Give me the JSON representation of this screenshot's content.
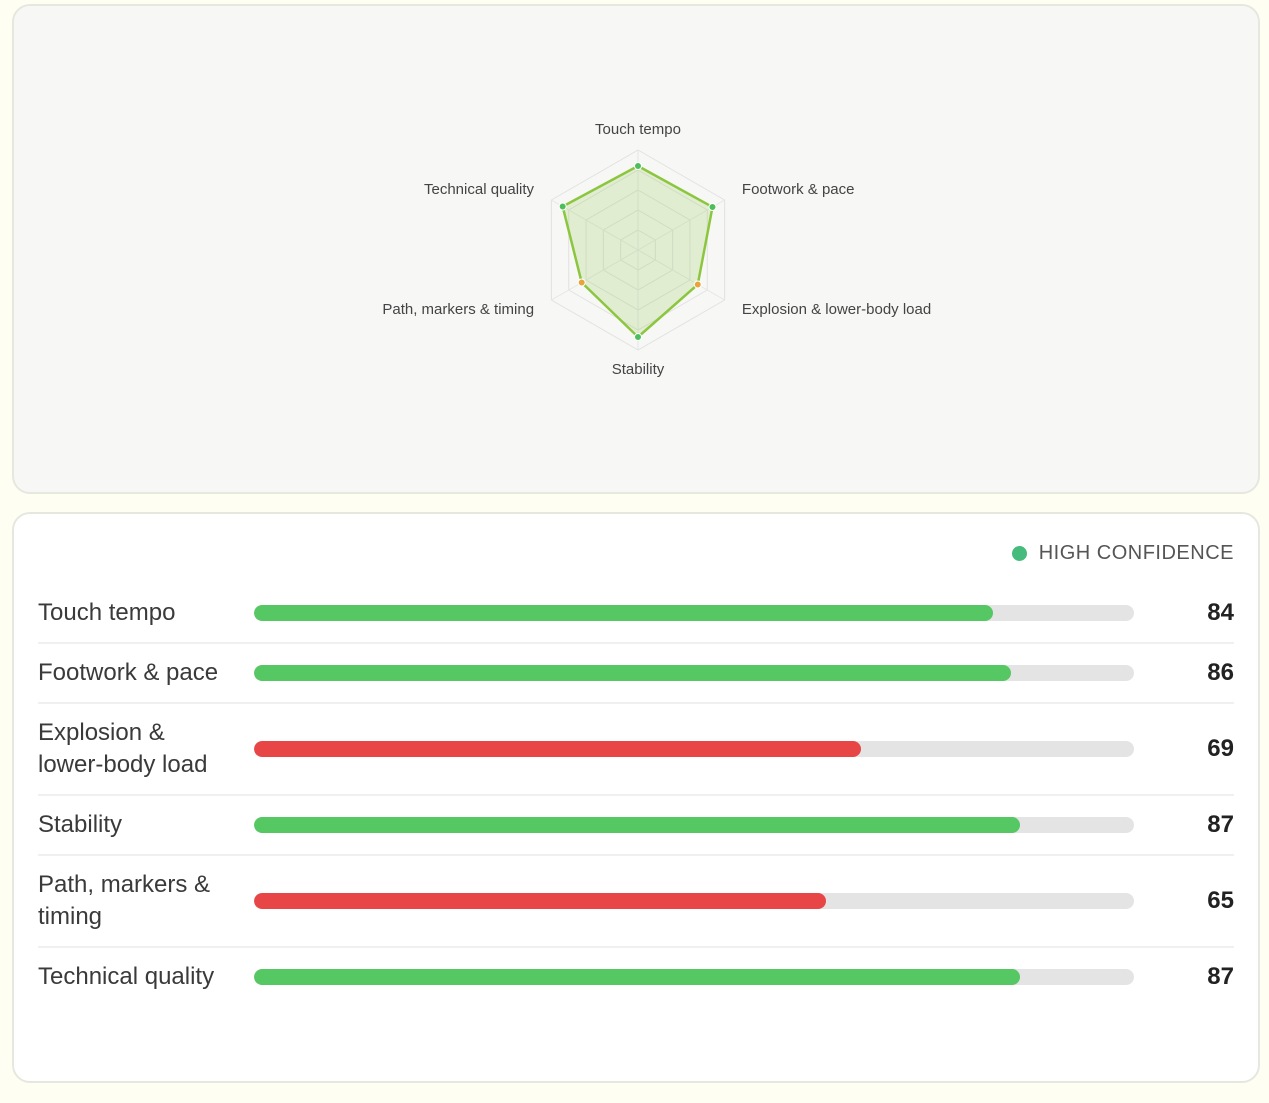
{
  "chart_data": [
    {
      "type": "radar",
      "categories": [
        "Touch tempo",
        "Footwork & pace",
        "Explosion & lower-body load",
        "Stability",
        "Path, markers & timing",
        "Technical quality"
      ],
      "values": [
        84,
        86,
        69,
        87,
        65,
        87
      ],
      "point_colors": [
        "#4cbf5a",
        "#4cbf5a",
        "#e8a33c",
        "#4cbf5a",
        "#e8a33c",
        "#4cbf5a"
      ],
      "color": "#8cc63f",
      "ylim": [
        0,
        100
      ]
    },
    {
      "type": "bar",
      "categories": [
        "Touch tempo",
        "Footwork & pace",
        "Explosion & lower-body load",
        "Stability",
        "Path, markers & timing",
        "Technical quality"
      ],
      "values": [
        84,
        86,
        69,
        87,
        65,
        87
      ],
      "colors": [
        "#55c763",
        "#55c763",
        "#e84646",
        "#55c763",
        "#e84646",
        "#55c763"
      ],
      "xlim": [
        0,
        100
      ],
      "legend": {
        "label": "HIGH CONFIDENCE",
        "color": "#45bb7c"
      }
    }
  ]
}
